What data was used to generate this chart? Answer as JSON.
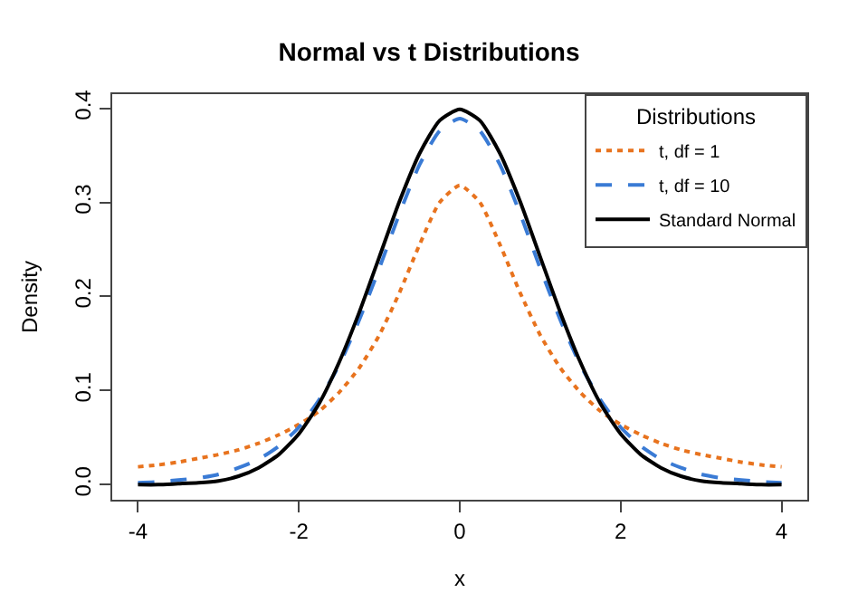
{
  "chart_data": {
    "type": "line",
    "title": "Normal vs t Distributions",
    "xlabel": "x",
    "ylabel": "Density",
    "legend_title": "Distributions",
    "x": [
      -4,
      -3.75,
      -3.5,
      -3.25,
      -3,
      -2.75,
      -2.5,
      -2.25,
      -2,
      -1.75,
      -1.5,
      -1.25,
      -1,
      -0.75,
      -0.5,
      -0.25,
      0,
      0.25,
      0.5,
      0.75,
      1,
      1.25,
      1.5,
      1.75,
      2,
      2.25,
      2.5,
      2.75,
      3,
      3.25,
      3.5,
      3.75,
      4
    ],
    "series": [
      {
        "name": "t, df = 1",
        "color": "#e8731e",
        "line_style": "dotted",
        "values": [
          0.019,
          0.021,
          0.024,
          0.028,
          0.032,
          0.037,
          0.044,
          0.053,
          0.064,
          0.078,
          0.098,
          0.124,
          0.159,
          0.204,
          0.255,
          0.3,
          0.318,
          0.3,
          0.255,
          0.204,
          0.159,
          0.124,
          0.098,
          0.078,
          0.064,
          0.053,
          0.044,
          0.037,
          0.032,
          0.028,
          0.024,
          0.021,
          0.019
        ]
      },
      {
        "name": "t, df = 10",
        "color": "#3a7bd5",
        "line_style": "dashed",
        "values": [
          0.002,
          0.003,
          0.005,
          0.007,
          0.011,
          0.018,
          0.027,
          0.041,
          0.061,
          0.09,
          0.127,
          0.175,
          0.23,
          0.288,
          0.34,
          0.376,
          0.389,
          0.376,
          0.34,
          0.288,
          0.23,
          0.175,
          0.127,
          0.09,
          0.061,
          0.041,
          0.027,
          0.018,
          0.011,
          0.007,
          0.005,
          0.003,
          0.002
        ]
      },
      {
        "name": "Standard Normal",
        "color": "#000000",
        "line_style": "solid",
        "values": [
          0.0,
          0.0,
          0.001,
          0.002,
          0.004,
          0.009,
          0.018,
          0.032,
          0.054,
          0.086,
          0.13,
          0.183,
          0.242,
          0.301,
          0.352,
          0.387,
          0.399,
          0.387,
          0.352,
          0.301,
          0.242,
          0.183,
          0.13,
          0.086,
          0.054,
          0.032,
          0.018,
          0.009,
          0.004,
          0.002,
          0.001,
          0.0,
          0.0
        ]
      }
    ],
    "xlim": [
      -4.32,
      4.32
    ],
    "ylim": [
      -0.016,
      0.415
    ],
    "xticks": [
      -4,
      -2,
      0,
      2,
      4
    ],
    "yticks": [
      {
        "value": 0,
        "label": "0.0"
      },
      {
        "value": 0.1,
        "label": "0.1"
      },
      {
        "value": 0.2,
        "label": "0.2"
      },
      {
        "value": 0.3,
        "label": "0.3"
      },
      {
        "value": 0.4,
        "label": "0.4"
      }
    ],
    "legend": "top right"
  }
}
